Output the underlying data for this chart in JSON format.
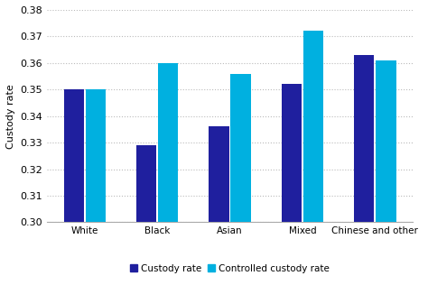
{
  "categories": [
    "White",
    "Black",
    "Asian",
    "Mixed",
    "Chinese and other"
  ],
  "custody_rate": [
    0.35,
    0.329,
    0.336,
    0.352,
    0.363
  ],
  "controlled_custody_rate": [
    0.35,
    0.36,
    0.356,
    0.372,
    0.361
  ],
  "bar_color_dark": "#1f1f9e",
  "bar_color_light": "#00b0e0",
  "ylabel": "Custody rate",
  "ylim_min": 0.3,
  "ylim_max": 0.38,
  "yticks": [
    0.3,
    0.31,
    0.32,
    0.33,
    0.34,
    0.35,
    0.36,
    0.37,
    0.38
  ],
  "legend_label_1": "Custody rate",
  "legend_label_2": "Controlled custody rate",
  "bar_width": 0.28,
  "bar_gap": 0.02,
  "grid_color": "#bbbbbb",
  "background_color": "#ffffff"
}
